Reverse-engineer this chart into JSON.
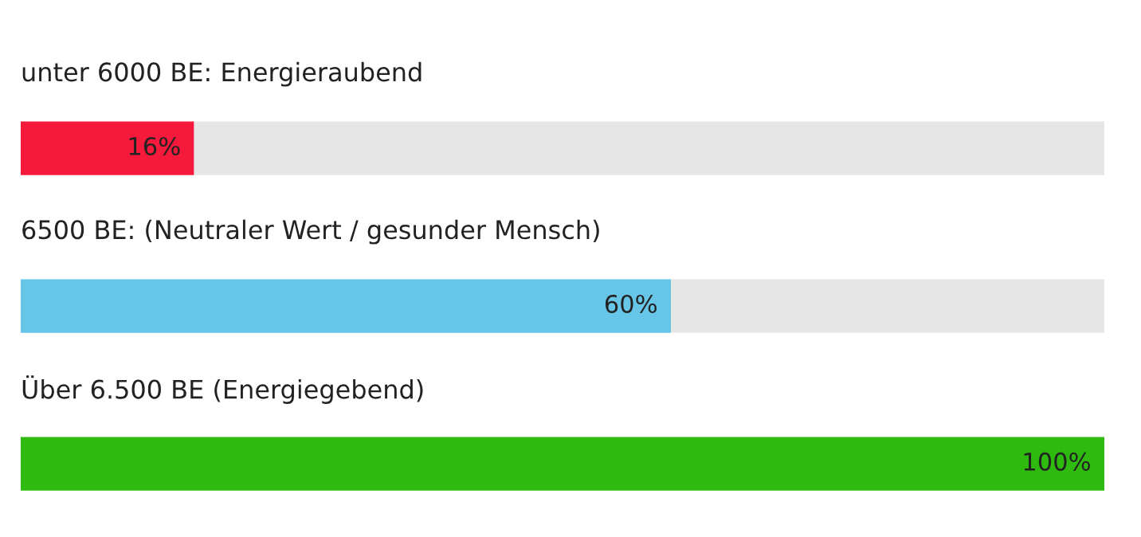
{
  "chart_data": {
    "type": "bar",
    "orientation": "horizontal",
    "stacked": true,
    "categories": [
      "unter 6000 BE: Energieraubend",
      "6500 BE: (Neutraler Wert / gesunder Mensch)",
      "Über 6.500 BE (Energiegebend)"
    ],
    "series": [
      {
        "color": "#f5193b",
        "colors": [
          "#f5193b",
          "#67c6e8",
          "#2fba0f"
        ],
        "values": [
          16,
          60,
          100
        ],
        "value_labels": [
          "16%",
          "60%",
          "100%"
        ]
      },
      {
        "color": "#e6e6e6",
        "values": [
          84,
          40,
          0
        ]
      }
    ]
  }
}
